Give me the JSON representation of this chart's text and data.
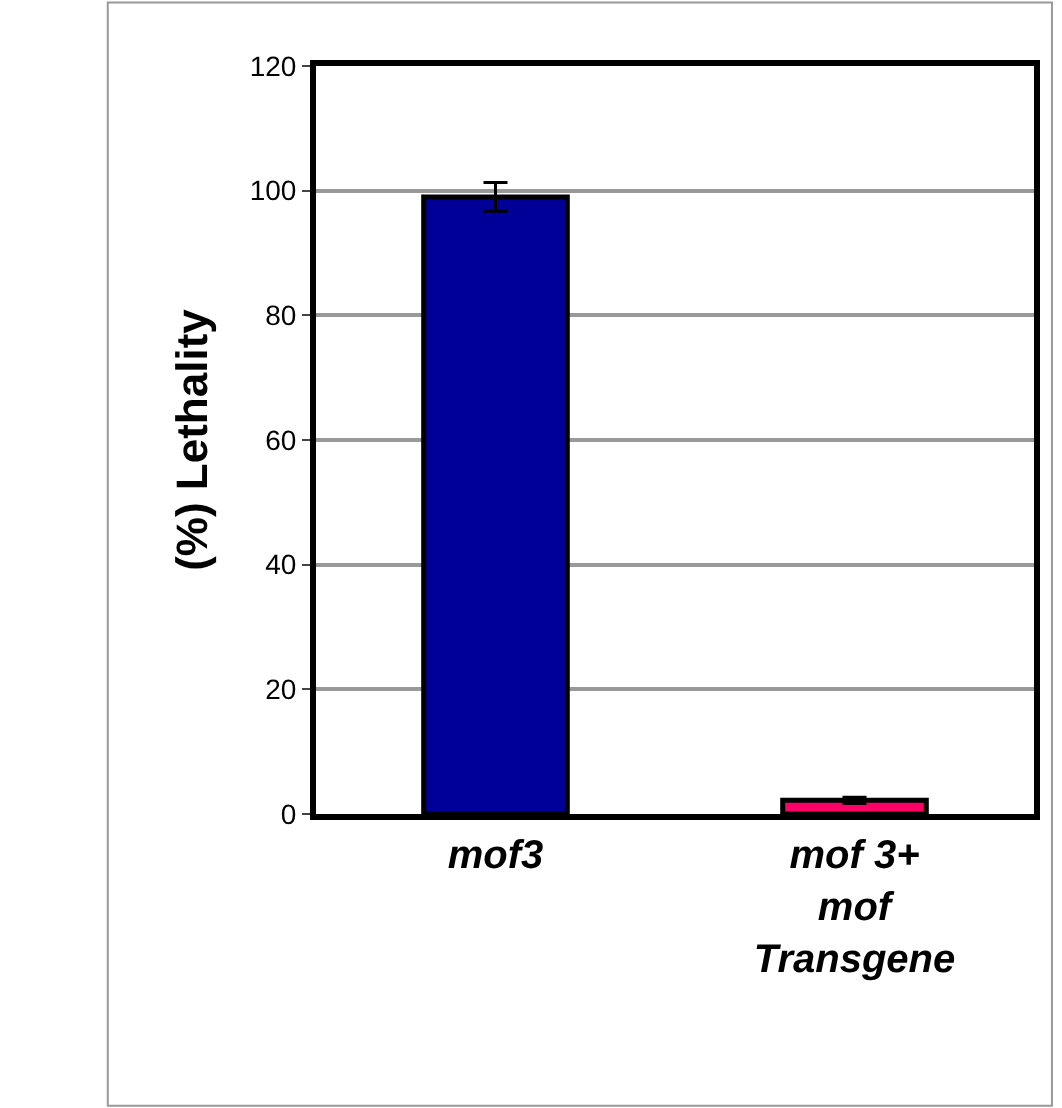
{
  "chart_data": {
    "type": "bar",
    "ylabel": "(%) Lethality",
    "categories": [
      "mof3",
      "mof 3+\nmof\nTransgene"
    ],
    "values": [
      99,
      2.2
    ],
    "colors": [
      "#000099",
      "#ff0066"
    ],
    "errors": [
      2.3,
      0.5
    ],
    "ylim": [
      0,
      120
    ],
    "yticks": [
      0,
      20,
      40,
      60,
      80,
      100,
      120
    ],
    "grid": "y"
  }
}
